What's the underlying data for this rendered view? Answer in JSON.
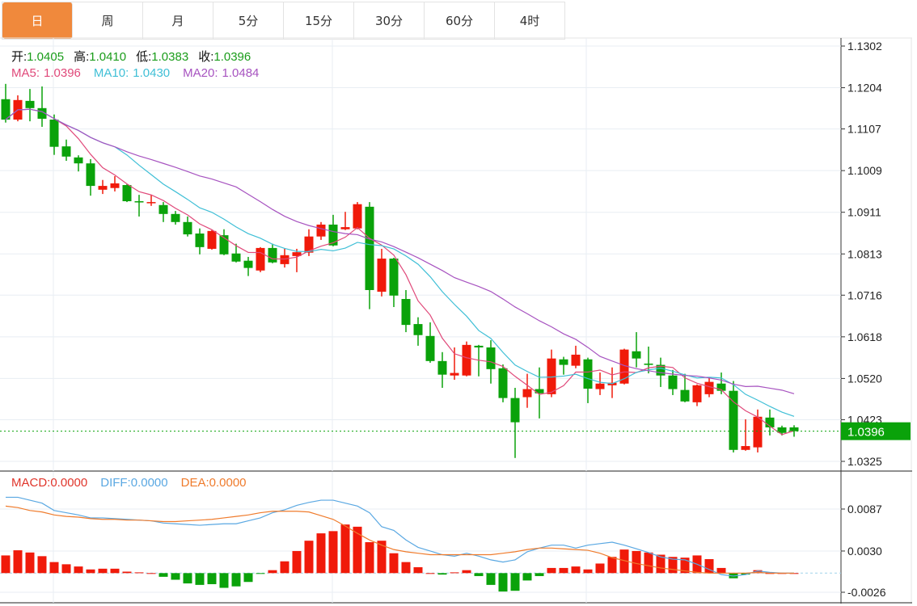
{
  "tabs": [
    {
      "label": "日",
      "active": true
    },
    {
      "label": "周",
      "active": false
    },
    {
      "label": "月",
      "active": false
    },
    {
      "label": "5分",
      "active": false
    },
    {
      "label": "15分",
      "active": false
    },
    {
      "label": "30分",
      "active": false
    },
    {
      "label": "60分",
      "active": false
    },
    {
      "label": "4时",
      "active": false
    }
  ],
  "ohlc_legend": [
    {
      "label": "开:",
      "value": "1.0405"
    },
    {
      "label": "高:",
      "value": "1.0410"
    },
    {
      "label": "低:",
      "value": "1.0383"
    },
    {
      "label": "收:",
      "value": "1.0396"
    }
  ],
  "ma_legend": [
    {
      "label": "MA5:",
      "value": "1.0396",
      "color": "#e0497a"
    },
    {
      "label": "MA10:",
      "value": "1.0430",
      "color": "#3fbfd6"
    },
    {
      "label": "MA20:",
      "value": "1.0484",
      "color": "#a753c0"
    }
  ],
  "macd_legend": [
    {
      "label": "MACD:",
      "value": "0.0000",
      "color": "#e0352b"
    },
    {
      "label": "DIFF:",
      "value": "0.0000",
      "color": "#5aa8e2"
    },
    {
      "label": "DEA:",
      "value": "0.0000",
      "color": "#ef7b2c"
    }
  ],
  "colors": {
    "up": "#f01a0a",
    "down": "#0aa20a",
    "accent": "#f0893c",
    "current_price": "#0aa20a"
  },
  "chart_data": [
    {
      "type": "candlestick",
      "ylim": [
        1.0325,
        1.1302
      ],
      "y_ticks": [
        "1.1302",
        "1.1204",
        "1.1107",
        "1.1009",
        "1.0911",
        "1.0813",
        "1.0716",
        "1.0618",
        "1.0520",
        "1.0423",
        "1.0325"
      ],
      "current_price": "1.0396",
      "moving_averages": [
        5,
        10,
        20
      ],
      "grid": true,
      "ohlc": [
        [
          1.1177,
          1.1213,
          1.1122,
          1.1129
        ],
        [
          1.1129,
          1.1186,
          1.1125,
          1.1175
        ],
        [
          1.1173,
          1.1201,
          1.1125,
          1.1156
        ],
        [
          1.1156,
          1.1207,
          1.1112,
          1.1131
        ],
        [
          1.1129,
          1.1141,
          1.1046,
          1.1065
        ],
        [
          1.1066,
          1.1082,
          1.1032,
          1.1042
        ],
        [
          1.104,
          1.1045,
          1.1007,
          1.1026
        ],
        [
          1.1026,
          1.1036,
          1.095,
          1.0973
        ],
        [
          1.0964,
          1.0987,
          1.0954,
          1.0973
        ],
        [
          1.0968,
          1.0996,
          1.096,
          1.0979
        ],
        [
          1.0975,
          1.0977,
          1.0935,
          1.0937
        ],
        [
          1.0937,
          1.0952,
          1.0901,
          1.0935
        ],
        [
          1.0933,
          1.0952,
          1.0926,
          1.0935
        ],
        [
          1.0928,
          1.0935,
          1.0888,
          1.0907
        ],
        [
          1.0907,
          1.0914,
          1.0882,
          1.0888
        ],
        [
          1.0888,
          1.0901,
          1.0854,
          1.0859
        ],
        [
          1.0861,
          1.0873,
          1.0812,
          1.0829
        ],
        [
          1.0825,
          1.0869,
          1.0823,
          1.0867
        ],
        [
          1.0857,
          1.0871,
          1.081,
          1.0812
        ],
        [
          1.0814,
          1.0837,
          1.0793,
          1.0795
        ],
        [
          1.0797,
          1.0806,
          1.0761,
          1.078
        ],
        [
          1.0774,
          1.0829,
          1.077,
          1.0827
        ],
        [
          1.0827,
          1.0837,
          1.0791,
          1.0793
        ],
        [
          1.0789,
          1.0825,
          1.0781,
          1.081
        ],
        [
          1.0808,
          1.0825,
          1.077,
          1.0817
        ],
        [
          1.0816,
          1.0871,
          1.0808,
          1.0854
        ],
        [
          1.0854,
          1.0888,
          1.0846,
          1.0882
        ],
        [
          1.0882,
          1.0905,
          1.0831,
          1.0833
        ],
        [
          1.0871,
          1.0912,
          1.0869,
          1.0876
        ],
        [
          1.0873,
          1.0935,
          1.0871,
          1.093
        ],
        [
          1.0924,
          1.0935,
          1.0683,
          1.0728
        ],
        [
          1.0724,
          1.0825,
          1.0713,
          1.0802
        ],
        [
          1.0802,
          1.0804,
          1.0688,
          1.0715
        ],
        [
          1.0707,
          1.0728,
          1.0629,
          1.0646
        ],
        [
          1.0648,
          1.0664,
          1.0597,
          1.0622
        ],
        [
          1.062,
          1.0652,
          1.0557,
          1.0561
        ],
        [
          1.0561,
          1.0582,
          1.0498,
          1.0529
        ],
        [
          1.0527,
          1.0593,
          1.0517,
          1.0533
        ],
        [
          1.0527,
          1.0607,
          1.0525,
          1.0599
        ],
        [
          1.0597,
          1.0599,
          1.0525,
          1.0593
        ],
        [
          1.0593,
          1.061,
          1.0508,
          1.0542
        ],
        [
          1.0544,
          1.0553,
          1.0464,
          1.0474
        ],
        [
          1.0474,
          1.0498,
          1.0333,
          1.0417
        ],
        [
          1.0476,
          1.0531,
          1.0451,
          1.0495
        ],
        [
          1.0495,
          1.0546,
          1.0426,
          1.0485
        ],
        [
          1.0483,
          1.0588,
          1.0476,
          1.0567
        ],
        [
          1.0565,
          1.0571,
          1.0529,
          1.0552
        ],
        [
          1.055,
          1.0597,
          1.0544,
          1.0576
        ],
        [
          1.0565,
          1.0569,
          1.0462,
          1.0496
        ],
        [
          1.0495,
          1.0534,
          1.0481,
          1.0508
        ],
        [
          1.0504,
          1.0546,
          1.0474,
          1.051
        ],
        [
          1.0508,
          1.059,
          1.0506,
          1.0588
        ],
        [
          1.0584,
          1.0629,
          1.0546,
          1.0567
        ],
        [
          1.0555,
          1.0595,
          1.0532,
          1.0552
        ],
        [
          1.0552,
          1.0569,
          1.05,
          1.0527
        ],
        [
          1.0527,
          1.054,
          1.0481,
          1.0495
        ],
        [
          1.0493,
          1.0531,
          1.0464,
          1.0466
        ],
        [
          1.0464,
          1.0506,
          1.0455,
          1.0504
        ],
        [
          1.0483,
          1.0521,
          1.0476,
          1.0512
        ],
        [
          1.0508,
          1.0534,
          1.0483,
          1.0491
        ],
        [
          1.0491,
          1.0514,
          1.0346,
          1.0352
        ],
        [
          1.0352,
          1.0424,
          1.035,
          1.0361
        ],
        [
          1.0358,
          1.0447,
          1.0346,
          1.043
        ],
        [
          1.0428,
          1.0447,
          1.0386,
          1.0405
        ],
        [
          1.0405,
          1.0409,
          1.0386,
          1.0392
        ],
        [
          1.0405,
          1.041,
          1.0383,
          1.0396
        ]
      ]
    },
    {
      "type": "bar+line",
      "ylim": [
        -0.0026,
        0.0087
      ],
      "y_ticks": [
        "0.0087",
        "0.0030",
        "-0.0026"
      ],
      "macd": [
        0.0024,
        0.0031,
        0.0028,
        0.0023,
        0.0015,
        0.0012,
        0.0009,
        0.0005,
        0.0006,
        0.0006,
        0.0002,
        0.0001,
        0.0,
        -0.0005,
        -0.0009,
        -0.0014,
        -0.0016,
        -0.0015,
        -0.002,
        -0.0018,
        -0.0012,
        -0.0001,
        0.0004,
        0.0016,
        0.003,
        0.0044,
        0.0054,
        0.0057,
        0.0066,
        0.0063,
        0.0042,
        0.0044,
        0.0027,
        0.0015,
        0.0008,
        0.0,
        -0.0002,
        0.0001,
        0.0004,
        -0.0004,
        -0.0016,
        -0.0025,
        -0.0024,
        -0.001,
        -0.0004,
        0.0007,
        0.0007,
        0.0009,
        0.0005,
        0.0013,
        0.0022,
        0.0032,
        0.003,
        0.0028,
        0.0025,
        0.0022,
        0.0021,
        0.0024,
        0.0019,
        0.0007,
        -0.0007,
        -0.0002,
        0.0004,
        0.0,
        0.0,
        0.0
      ],
      "diff": [
        0.0103,
        0.0103,
        0.0099,
        0.0095,
        0.0085,
        0.0082,
        0.0079,
        0.0075,
        0.0075,
        0.0074,
        0.0073,
        0.0072,
        0.0071,
        0.0068,
        0.0067,
        0.0066,
        0.0065,
        0.0066,
        0.0067,
        0.0067,
        0.0071,
        0.0075,
        0.0082,
        0.0086,
        0.0092,
        0.0096,
        0.0099,
        0.0099,
        0.0095,
        0.0091,
        0.0082,
        0.0063,
        0.0058,
        0.0045,
        0.0035,
        0.003,
        0.0025,
        0.0023,
        0.0027,
        0.0023,
        0.0018,
        0.0015,
        0.0018,
        0.0029,
        0.0034,
        0.0038,
        0.0038,
        0.0034,
        0.0038,
        0.004,
        0.0042,
        0.0038,
        0.0033,
        0.0028,
        0.0022,
        0.0019,
        0.0018,
        0.0012,
        0.0005,
        -0.0002,
        -0.0004,
        -0.0002,
        0.0003,
        0.0001,
        0.0,
        0.0
      ],
      "dea": [
        0.0091,
        0.0089,
        0.0085,
        0.0083,
        0.0079,
        0.0077,
        0.0076,
        0.0074,
        0.0073,
        0.0073,
        0.0072,
        0.0072,
        0.0071,
        0.007,
        0.007,
        0.0071,
        0.0072,
        0.0073,
        0.0075,
        0.0077,
        0.0079,
        0.0082,
        0.0084,
        0.0084,
        0.0084,
        0.0083,
        0.0078,
        0.0073,
        0.0064,
        0.0054,
        0.0045,
        0.0038,
        0.0032,
        0.0029,
        0.0027,
        0.0025,
        0.0025,
        0.0025,
        0.0025,
        0.0025,
        0.0025,
        0.0027,
        0.0029,
        0.0032,
        0.0034,
        0.0034,
        0.0033,
        0.0032,
        0.0031,
        0.0027,
        0.0021,
        0.0017,
        0.0013,
        0.001,
        0.0007,
        0.0005,
        0.0003,
        0.0001,
        0.0,
        0.0,
        0.0,
        0.0,
        0.0001,
        0.0,
        0.0,
        0.0
      ]
    }
  ]
}
